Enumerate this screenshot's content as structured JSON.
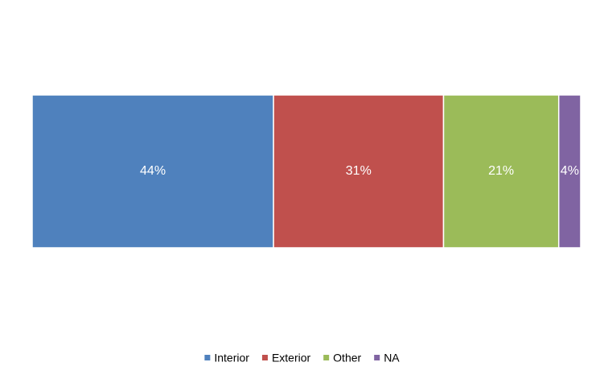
{
  "chart_data": {
    "type": "bar",
    "orientation": "horizontal",
    "stacked": true,
    "categories": [
      null
    ],
    "xlim": [
      0,
      100
    ],
    "legend": "bottom",
    "series": [
      {
        "name": "Interior",
        "color": "#4f81bd",
        "values": [
          44
        ],
        "value_labels": [
          "44%"
        ]
      },
      {
        "name": "Exterior",
        "color": "#c0504d",
        "values": [
          31
        ],
        "value_labels": [
          "31%"
        ]
      },
      {
        "name": "Other",
        "color": "#9bbb59",
        "values": [
          21
        ],
        "value_labels": [
          "21%"
        ]
      },
      {
        "name": "NA",
        "color": "#8064a2",
        "values": [
          4
        ],
        "value_labels": [
          "4%"
        ]
      }
    ]
  }
}
